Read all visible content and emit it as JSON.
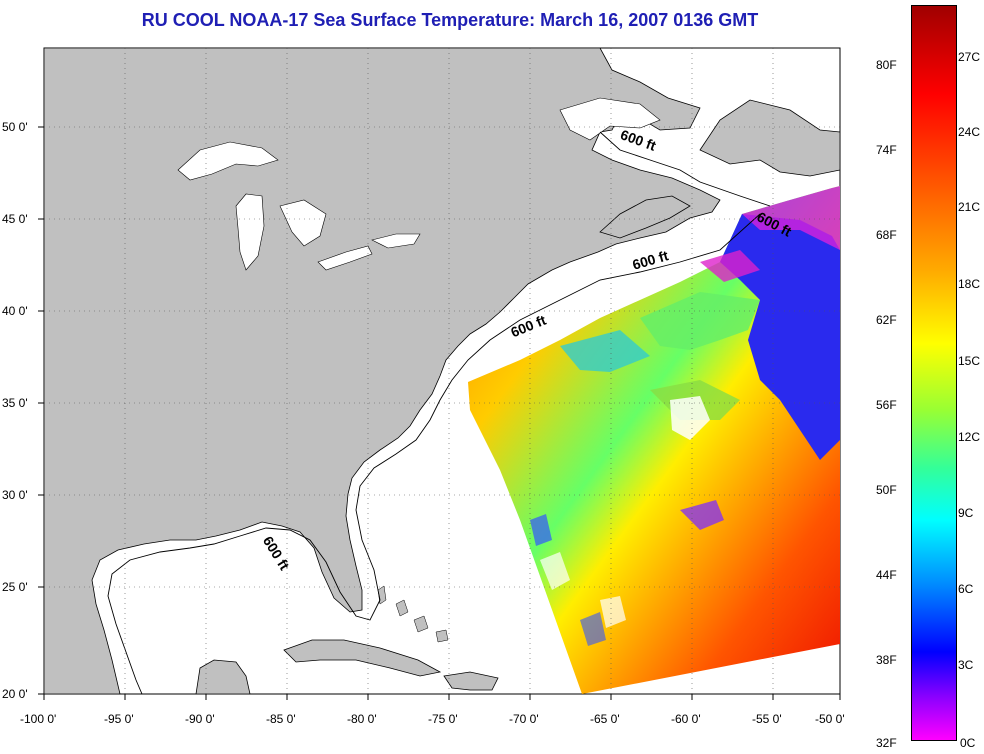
{
  "title": "RU COOL  NOAA-17  Sea Surface Temperature:  March 16, 2007 0136 GMT",
  "axes": {
    "x_ticks": [
      "-100 0'",
      "-95 0'",
      "-90 0'",
      "-85 0'",
      "-80 0'",
      "-75 0'",
      "-70 0'",
      "-65 0'",
      "-60 0'",
      "-55 0'",
      "-50 0'"
    ],
    "y_ticks": [
      "50 0'",
      "45 0'",
      "40 0'",
      "35 0'",
      "30 0'",
      "25 0'",
      "20 0'"
    ]
  },
  "contour_labels": [
    "600 ft",
    "600 ft",
    "600 ft",
    "600 ft",
    "600 ft"
  ],
  "colorbar": {
    "fahrenheit": [
      "80F",
      "74F",
      "68F",
      "62F",
      "56F",
      "50F",
      "44F",
      "38F",
      "32F"
    ],
    "celsius": [
      "27C",
      "24C",
      "21C",
      "18C",
      "15C",
      "12C",
      "9C",
      "6C",
      "3C",
      "0C"
    ]
  },
  "colors": {
    "land": "#c0c0c0",
    "title": "#1f1fb4"
  }
}
